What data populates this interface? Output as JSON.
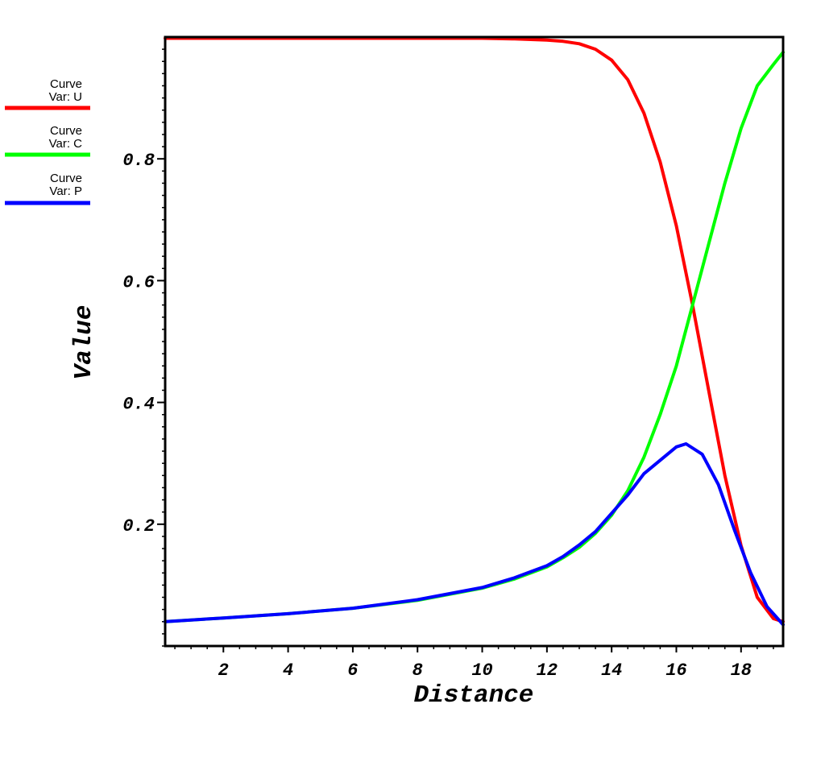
{
  "chart_data": {
    "type": "line",
    "xlabel": "Distance",
    "ylabel": "Value",
    "xlim": [
      0.2,
      19.3
    ],
    "ylim": [
      0.0,
      1.0
    ],
    "x_ticks": [
      2,
      4,
      6,
      8,
      10,
      12,
      14,
      16,
      18
    ],
    "y_ticks": [
      0.2,
      0.4,
      0.6,
      0.8
    ],
    "y_tick_labels": [
      "0.2",
      "0.4",
      "0.6",
      "0.8"
    ],
    "legend_position": "left",
    "series": [
      {
        "name": "Curve Var: U",
        "legend_line1": "Curve",
        "legend_line2": "Var: U",
        "color": "#ff0000",
        "x": [
          0.2,
          2,
          4,
          6,
          8,
          10,
          11,
          12,
          12.5,
          13,
          13.5,
          14,
          14.5,
          15,
          15.5,
          16,
          16.5,
          17,
          17.5,
          18,
          18.5,
          19,
          19.3
        ],
        "y": [
          0.998,
          0.998,
          0.998,
          0.998,
          0.998,
          0.998,
          0.997,
          0.995,
          0.993,
          0.989,
          0.98,
          0.962,
          0.93,
          0.875,
          0.795,
          0.69,
          0.56,
          0.42,
          0.28,
          0.165,
          0.08,
          0.045,
          0.04
        ]
      },
      {
        "name": "Curve Var: C",
        "legend_line1": "Curve",
        "legend_line2": "Var: C",
        "color": "#00ff00",
        "x": [
          0.2,
          2,
          4,
          6,
          8,
          10,
          11,
          12,
          12.5,
          13,
          13.5,
          14,
          14.5,
          15,
          15.5,
          16,
          16.5,
          17,
          17.5,
          18,
          18.5,
          19,
          19.3
        ],
        "y": [
          0.04,
          0.046,
          0.053,
          0.062,
          0.075,
          0.095,
          0.11,
          0.13,
          0.145,
          0.162,
          0.185,
          0.215,
          0.255,
          0.31,
          0.38,
          0.46,
          0.56,
          0.66,
          0.76,
          0.85,
          0.92,
          0.955,
          0.975
        ]
      },
      {
        "name": "Curve Var: P",
        "legend_line1": "Curve",
        "legend_line2": "Var: P",
        "color": "#0000ff",
        "x": [
          0.2,
          2,
          4,
          6,
          8,
          10,
          11,
          12,
          12.5,
          13,
          13.5,
          14,
          14.5,
          15,
          15.5,
          16,
          16.3,
          16.8,
          17.3,
          17.8,
          18.3,
          18.8,
          19.3
        ],
        "y": [
          0.04,
          0.046,
          0.053,
          0.062,
          0.076,
          0.096,
          0.112,
          0.132,
          0.147,
          0.166,
          0.188,
          0.218,
          0.248,
          0.283,
          0.305,
          0.327,
          0.332,
          0.315,
          0.265,
          0.19,
          0.12,
          0.065,
          0.035
        ]
      }
    ]
  }
}
